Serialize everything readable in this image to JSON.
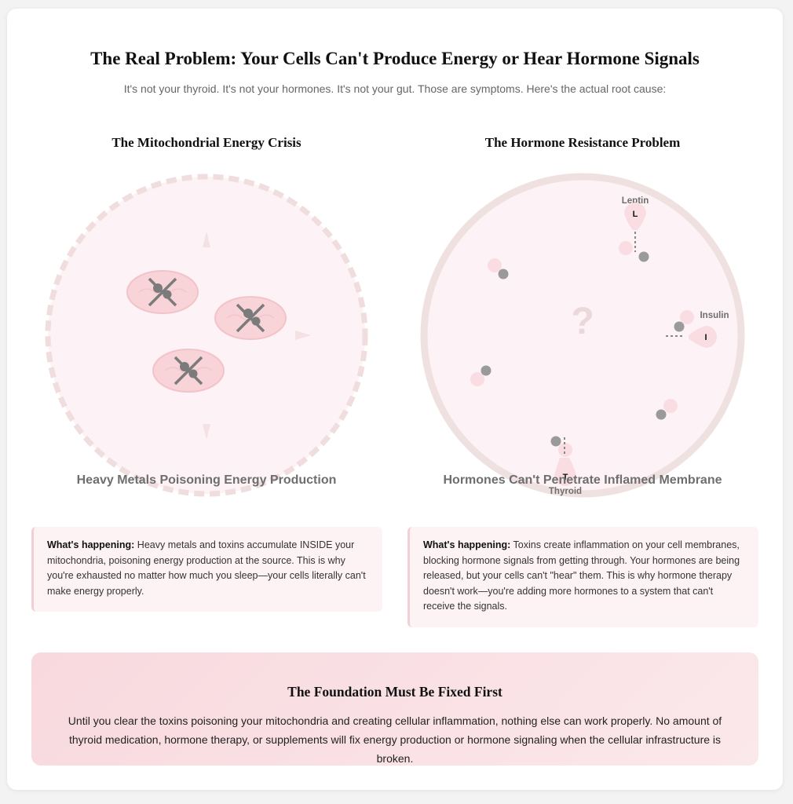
{
  "header": {
    "title": "The Real Problem: Your Cells Can't Produce Energy or Hear Hormone Signals",
    "subtitle": "It's not your thyroid. It's not your hormones. It's not your gut. Those are symptoms. Here's the actual root cause:"
  },
  "left_panel": {
    "title": "The Mitochondrial Energy Crisis",
    "caption": "Heavy Metals Poisoning Energy Production",
    "info_lead": "What's happening:",
    "info_text": " Heavy metals and toxins accumulate INSIDE your mitochondria, poisoning energy production at the source. This is why you're exhausted no matter how much you sleep—your cells literally can't make energy properly."
  },
  "right_panel": {
    "title": "The Hormone Resistance Problem",
    "caption": "Hormones Can't Penetrate Inflamed Membrane",
    "question_mark": "?",
    "hormones": [
      {
        "name": "Leptin",
        "letter": "L"
      },
      {
        "name": "Insulin",
        "letter": "I"
      },
      {
        "name": "Thyroid",
        "letter": "T"
      }
    ],
    "info_lead": "What's happening:",
    "info_text": " Toxins create inflammation on your cell membranes, blocking hormone signals from getting through. Your hormones are being released, but your cells can't \"hear\" them. This is why hormone therapy doesn't work—you're adding more hormones to a system that can't receive the signals."
  },
  "foundation": {
    "title": "The Foundation Must Be Fixed First",
    "text": "Until you clear the toxins poisoning your mitochondria and creating cellular inflammation, nothing else can work properly. No amount of thyroid medication, hormone therapy, or supplements will fix energy production or hormone signaling when the cellular infrastructure is broken."
  },
  "colors": {
    "cell_fill": "#fdf2f5",
    "membrane": "#f0dede",
    "mitochondria": "#f8d3d8",
    "metal": "#7b7b7b",
    "receptor": "#f9dde2",
    "caption": "#6e6e6e"
  }
}
